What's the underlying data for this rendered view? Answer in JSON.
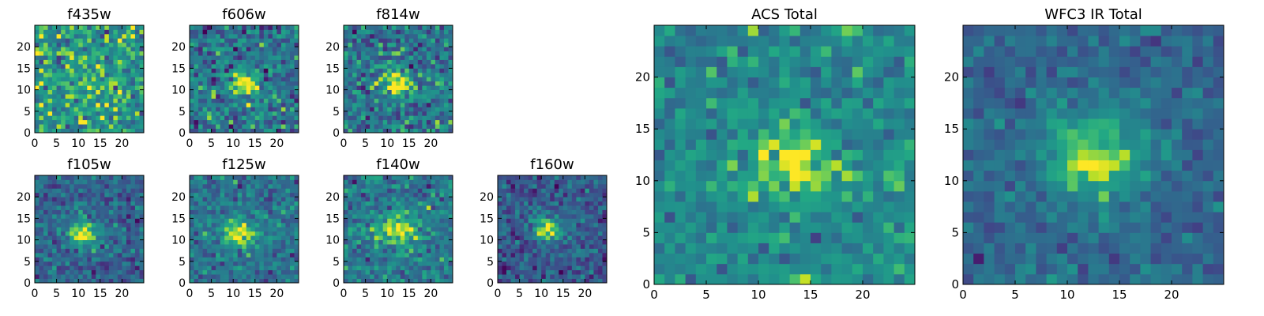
{
  "figure": {
    "colormap": "viridis",
    "colors": {
      "low": "#440154",
      "mid_low": "#3b528b",
      "mid": "#21908d",
      "mid_high": "#5dc963",
      "high": "#fde725"
    }
  },
  "chart_data": [
    {
      "type": "heatmap",
      "title": "f435w",
      "xlim": [
        0,
        25
      ],
      "ylim": [
        0,
        25
      ],
      "xticks": [
        "0",
        "5",
        "10",
        "15",
        "20"
      ],
      "yticks": [
        "0",
        "5",
        "10",
        "15",
        "20"
      ],
      "grid_size": 25,
      "peak": {
        "x": 12,
        "y": 12,
        "amplitude": 0.15,
        "width": 3.0
      },
      "background_level": 0.66,
      "noise": 0.17,
      "seed": 11
    },
    {
      "type": "heatmap",
      "title": "f606w",
      "xlim": [
        0,
        25
      ],
      "ylim": [
        0,
        25
      ],
      "xticks": [
        "0",
        "5",
        "10",
        "15",
        "20"
      ],
      "yticks": [
        "0",
        "5",
        "10",
        "15",
        "20"
      ],
      "grid_size": 25,
      "peak": {
        "x": 12,
        "y": 11,
        "amplitude": 0.55,
        "width": 2.4
      },
      "background_level": 0.48,
      "noise": 0.17,
      "seed": 23
    },
    {
      "type": "heatmap",
      "title": "f814w",
      "xlim": [
        0,
        25
      ],
      "ylim": [
        0,
        25
      ],
      "xticks": [
        "0",
        "5",
        "10",
        "15",
        "20"
      ],
      "yticks": [
        "0",
        "5",
        "10",
        "15",
        "20"
      ],
      "grid_size": 25,
      "peak": {
        "x": 12,
        "y": 11,
        "amplitude": 0.45,
        "width": 2.6
      },
      "background_level": 0.5,
      "noise": 0.17,
      "seed": 37
    },
    {
      "type": "heatmap",
      "title": "f105w",
      "xlim": [
        0,
        25
      ],
      "ylim": [
        0,
        25
      ],
      "xticks": [
        "0",
        "5",
        "10",
        "15",
        "20"
      ],
      "yticks": [
        "0",
        "5",
        "10",
        "15",
        "20"
      ],
      "grid_size": 25,
      "peak": {
        "x": 11,
        "y": 11,
        "amplitude": 0.6,
        "width": 2.6
      },
      "background_level": 0.4,
      "noise": 0.13,
      "seed": 41
    },
    {
      "type": "heatmap",
      "title": "f125w",
      "xlim": [
        0,
        25
      ],
      "ylim": [
        0,
        25
      ],
      "xticks": [
        "0",
        "5",
        "10",
        "15",
        "20"
      ],
      "yticks": [
        "0",
        "5",
        "10",
        "15",
        "20"
      ],
      "grid_size": 25,
      "peak": {
        "x": 11,
        "y": 11,
        "amplitude": 0.5,
        "width": 2.8
      },
      "background_level": 0.48,
      "noise": 0.13,
      "seed": 53
    },
    {
      "type": "heatmap",
      "title": "f140w",
      "xlim": [
        0,
        25
      ],
      "ylim": [
        0,
        25
      ],
      "xticks": [
        "0",
        "5",
        "10",
        "15",
        "20"
      ],
      "yticks": [
        "0",
        "5",
        "10",
        "15",
        "20"
      ],
      "grid_size": 25,
      "peak": {
        "x": 12,
        "y": 12,
        "amplitude": 0.45,
        "width": 3.0
      },
      "background_level": 0.5,
      "noise": 0.13,
      "seed": 67
    },
    {
      "type": "heatmap",
      "title": "f160w",
      "xlim": [
        0,
        25
      ],
      "ylim": [
        0,
        25
      ],
      "xticks": [
        "0",
        "5",
        "10",
        "15",
        "20"
      ],
      "yticks": [
        "0",
        "5",
        "10",
        "15",
        "20"
      ],
      "grid_size": 25,
      "peak": {
        "x": 11,
        "y": 12,
        "amplitude": 0.65,
        "width": 2.5
      },
      "background_level": 0.35,
      "noise": 0.13,
      "seed": 79
    },
    {
      "type": "heatmap",
      "title": "ACS Total",
      "xlim": [
        0,
        25
      ],
      "ylim": [
        0,
        25
      ],
      "xticks": [
        "0",
        "5",
        "10",
        "15",
        "20"
      ],
      "yticks": [
        "0",
        "5",
        "10",
        "15",
        "20"
      ],
      "grid_size": 25,
      "peak": {
        "x": 13,
        "y": 11,
        "amplitude": 0.35,
        "width": 3.2
      },
      "background_level": 0.58,
      "noise": 0.12,
      "seed": 97
    },
    {
      "type": "heatmap",
      "title": "WFC3 IR Total",
      "xlim": [
        0,
        25
      ],
      "ylim": [
        0,
        25
      ],
      "xticks": [
        "0",
        "5",
        "10",
        "15",
        "20"
      ],
      "yticks": [
        "0",
        "5",
        "10",
        "15",
        "20"
      ],
      "grid_size": 25,
      "peak": {
        "x": 12,
        "y": 12,
        "amplitude": 0.55,
        "width": 3.4
      },
      "background_level": 0.42,
      "noise": 0.09,
      "seed": 113
    }
  ]
}
